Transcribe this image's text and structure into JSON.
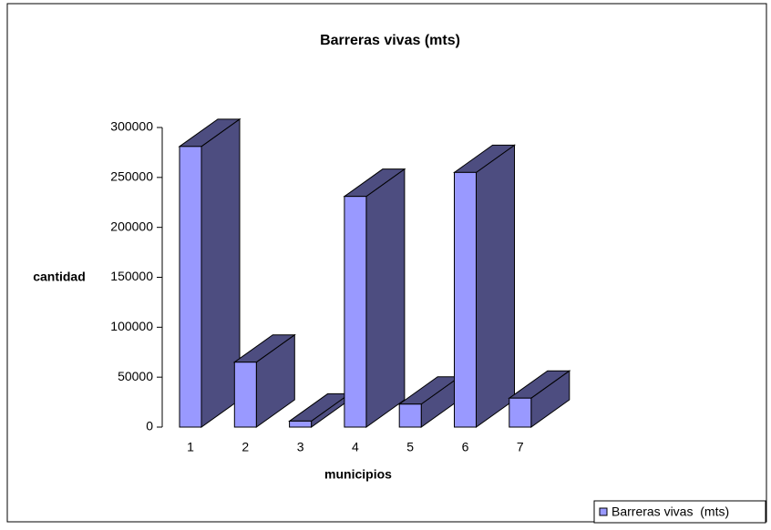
{
  "chart_data": {
    "type": "bar3d",
    "title": "Barreras vivas  (mts)",
    "x_label": "municipios",
    "y_label": "cantidad",
    "categories": [
      "1",
      "2",
      "3",
      "4",
      "5",
      "6",
      "7"
    ],
    "series": [
      {
        "name": "Barreras vivas  (mts)",
        "color": "#9999ff",
        "side_color": "#4d4d80",
        "values": [
          281000,
          65000,
          6000,
          231000,
          23000,
          255000,
          29000
        ]
      }
    ],
    "ylim": [
      0,
      300000
    ],
    "yticks": [
      0,
      50000,
      100000,
      150000,
      200000,
      250000,
      300000
    ],
    "legend": "bottom-right"
  }
}
